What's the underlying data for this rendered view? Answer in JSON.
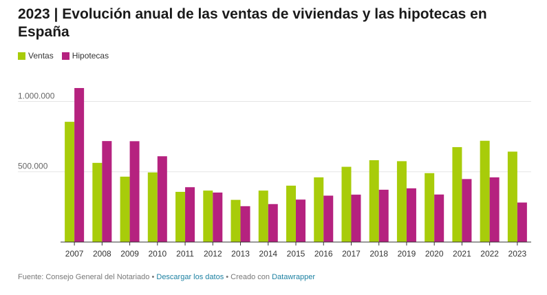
{
  "title": "2023 | Evolución anual de las ventas de viviendas y las hipotecas en España",
  "colors": {
    "ventas": "#a8cc0a",
    "hipotecas": "#b5227f",
    "grid": "#e5e5e5",
    "axis": "#333333"
  },
  "legend": [
    {
      "label": "Ventas",
      "color": "#a8cc0a"
    },
    {
      "label": "Hipotecas",
      "color": "#b5227f"
    }
  ],
  "chart_data": {
    "type": "bar",
    "title": "2023 | Evolución anual de las ventas de viviendas y las hipotecas en España",
    "categories": [
      "2007",
      "2008",
      "2009",
      "2010",
      "2011",
      "2012",
      "2013",
      "2014",
      "2015",
      "2016",
      "2017",
      "2018",
      "2019",
      "2020",
      "2021",
      "2022",
      "2023"
    ],
    "series": [
      {
        "name": "Ventas",
        "values": [
          855000,
          563000,
          465000,
          495000,
          357000,
          366000,
          300000,
          366000,
          401000,
          460000,
          535000,
          582000,
          575000,
          490000,
          675000,
          720000,
          643000
        ]
      },
      {
        "name": "Hipotecas",
        "values": [
          1095000,
          718000,
          717000,
          610000,
          390000,
          352000,
          255000,
          270000,
          302000,
          330000,
          337000,
          372000,
          382000,
          338000,
          448000,
          460000,
          281000
        ]
      }
    ],
    "ylim": [
      0,
      1100000
    ],
    "yticks": [
      500000,
      1000000
    ],
    "ytick_labels": [
      "500.000",
      "1.000.000"
    ],
    "grid": true,
    "legend_position": "top-left"
  },
  "footer": {
    "source": "Fuente: Consejo General del Notariado",
    "sep1": " • ",
    "download": "Descargar los datos",
    "sep2": " • Creado con ",
    "tool": "Datawrapper"
  }
}
